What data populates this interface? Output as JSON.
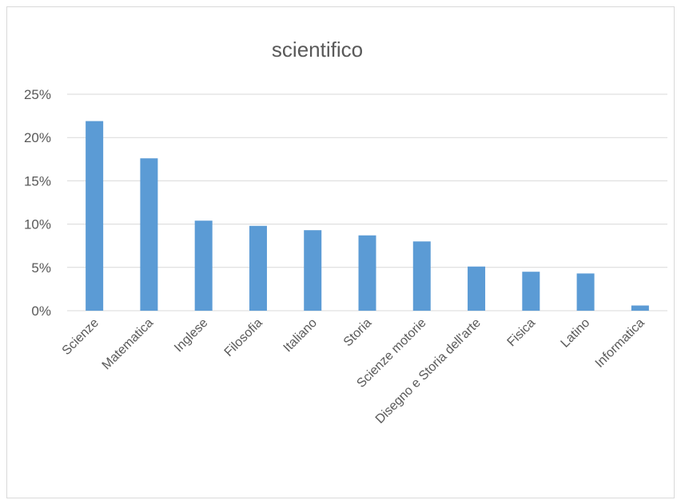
{
  "chart_data": {
    "type": "bar",
    "title": "scientifico",
    "xlabel": "",
    "ylabel": "",
    "categories": [
      "Scienze",
      "Matematica",
      "Inglese",
      "Filosofia",
      "Italiano",
      "Storia",
      "Scienze motorie",
      "Disegno e Storia dell'arte",
      "Fisica",
      "Latino",
      "Informatica"
    ],
    "values": [
      21.9,
      17.6,
      10.4,
      9.8,
      9.3,
      8.7,
      8.0,
      5.1,
      4.5,
      4.3,
      0.6
    ],
    "ylim": [
      0,
      25
    ],
    "yticks": [
      0,
      5,
      10,
      15,
      20,
      25
    ],
    "ytick_labels": [
      "0%",
      "5%",
      "10%",
      "15%",
      "20%",
      "25%"
    ],
    "grid": true,
    "legend": "none",
    "bar_color": "#5b9bd5"
  }
}
